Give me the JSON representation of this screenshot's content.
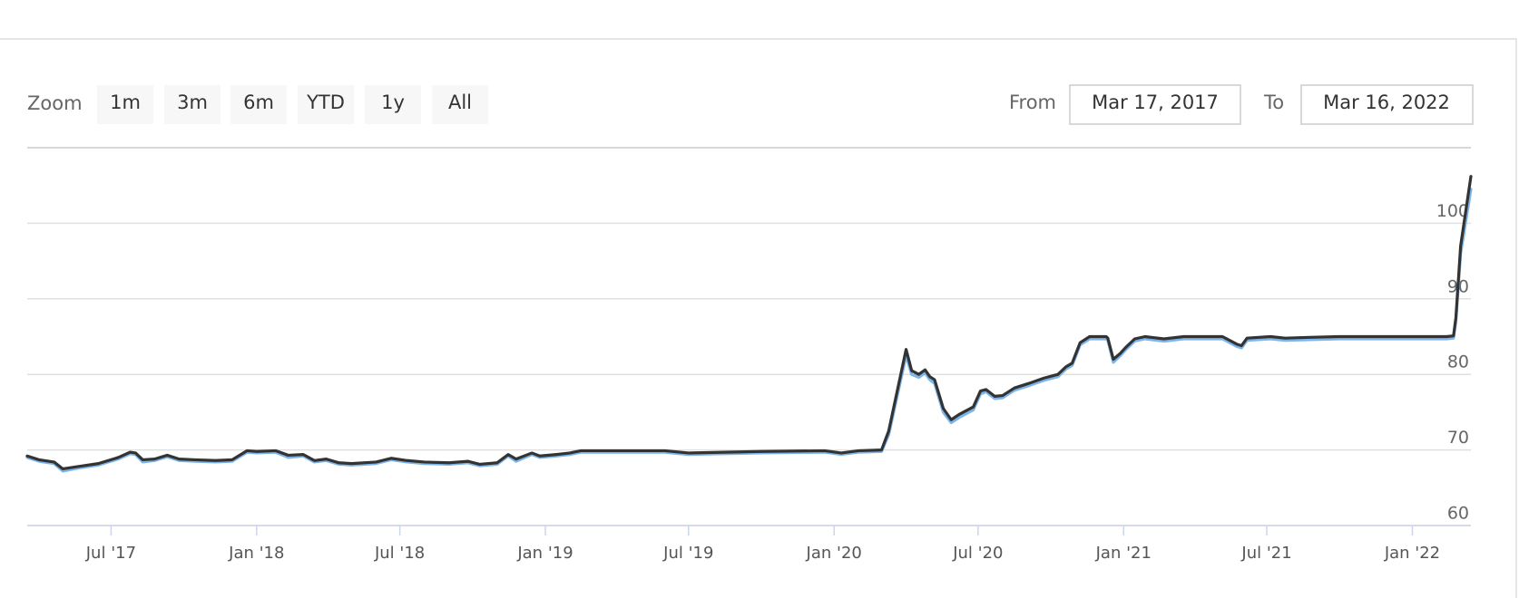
{
  "range_selector": {
    "zoom_label": "Zoom",
    "buttons": [
      "1m",
      "3m",
      "6m",
      "YTD",
      "1y",
      "All"
    ],
    "from_label": "From",
    "from": "Mar 17, 2017",
    "to_label": "To",
    "to": "Mar 16, 2022"
  },
  "chart_data": {
    "type": "line",
    "x": [
      "2017-03-17",
      "2017-04-01",
      "2017-04-20",
      "2017-05-01",
      "2017-05-20",
      "2017-06-15",
      "2017-07-10",
      "2017-07-25",
      "2017-08-01",
      "2017-08-10",
      "2017-08-25",
      "2017-09-10",
      "2017-09-25",
      "2017-10-15",
      "2017-11-10",
      "2017-12-01",
      "2017-12-20",
      "2018-01-01",
      "2018-01-25",
      "2018-02-10",
      "2018-03-01",
      "2018-03-15",
      "2018-03-30",
      "2018-04-15",
      "2018-05-01",
      "2018-06-01",
      "2018-06-20",
      "2018-07-10",
      "2018-08-01",
      "2018-09-01",
      "2018-09-25",
      "2018-10-10",
      "2018-11-01",
      "2018-11-15",
      "2018-11-25",
      "2018-12-15",
      "2018-12-25",
      "2019-01-15",
      "2019-02-01",
      "2019-02-15",
      "2019-06-01",
      "2019-07-01",
      "2019-10-01",
      "2019-12-20",
      "2020-01-10",
      "2020-02-01",
      "2020-03-01",
      "2020-03-10",
      "2020-04-01",
      "2020-04-08",
      "2020-04-17",
      "2020-04-25",
      "2020-05-01",
      "2020-05-07",
      "2020-05-18",
      "2020-05-28",
      "2020-06-07",
      "2020-06-25",
      "2020-07-04",
      "2020-07-11",
      "2020-07-22",
      "2020-08-01",
      "2020-08-16",
      "2020-09-03",
      "2020-09-22",
      "2020-10-10",
      "2020-10-20",
      "2020-10-28",
      "2020-11-07",
      "2020-11-19",
      "2020-12-10",
      "2020-12-12",
      "2020-12-19",
      "2020-12-28",
      "2021-01-03",
      "2021-01-15",
      "2021-01-28",
      "2021-02-21",
      "2021-03-18",
      "2021-05-06",
      "2021-05-24",
      "2021-05-30",
      "2021-06-06",
      "2021-07-06",
      "2021-07-24",
      "2021-08-24",
      "2021-09-30",
      "2022-02-13",
      "2022-02-22",
      "2022-02-25",
      "2022-03-03",
      "2022-03-16"
    ],
    "series": [
      {
        "color": "#7cb5ec",
        "values": [
          69.0,
          68.5,
          68.2,
          67.2,
          67.6,
          68.0,
          68.8,
          69.5,
          69.4,
          68.4,
          68.6,
          69.1,
          68.6,
          68.5,
          68.4,
          68.5,
          69.7,
          69.6,
          69.7,
          69.0,
          69.2,
          68.4,
          68.6,
          68.1,
          68.0,
          68.2,
          68.7,
          68.4,
          68.2,
          68.1,
          68.3,
          67.9,
          68.1,
          69.2,
          68.5,
          69.4,
          69.0,
          69.2,
          69.4,
          69.7,
          69.7,
          69.4,
          69.6,
          69.7,
          69.4,
          69.7,
          69.8,
          72.0,
          82.5,
          80.0,
          79.6,
          80.2,
          79.3,
          78.8,
          75.0,
          73.6,
          74.3,
          75.3,
          77.4,
          77.7,
          76.8,
          76.9,
          77.9,
          78.5,
          79.2,
          79.7,
          80.7,
          81.2,
          83.9,
          84.7,
          84.7,
          84.5,
          81.6,
          82.5,
          83.2,
          84.4,
          84.7,
          84.4,
          84.7,
          84.7,
          83.7,
          83.5,
          84.5,
          84.7,
          84.5,
          84.6,
          84.7,
          84.7,
          84.8,
          87.0,
          96.0,
          104.5
        ]
      },
      {
        "color": "#333333",
        "values": [
          69.2,
          68.7,
          68.4,
          67.5,
          67.8,
          68.2,
          69.0,
          69.7,
          69.6,
          68.7,
          68.8,
          69.3,
          68.8,
          68.7,
          68.6,
          68.7,
          69.9,
          69.8,
          69.9,
          69.3,
          69.4,
          68.6,
          68.8,
          68.3,
          68.2,
          68.4,
          68.9,
          68.6,
          68.4,
          68.3,
          68.5,
          68.1,
          68.3,
          69.4,
          68.8,
          69.6,
          69.2,
          69.4,
          69.6,
          69.9,
          69.9,
          69.6,
          69.8,
          69.9,
          69.6,
          69.9,
          70.0,
          72.5,
          83.3,
          80.5,
          80.0,
          80.6,
          79.7,
          79.3,
          75.5,
          74.0,
          74.7,
          75.7,
          77.8,
          78.0,
          77.1,
          77.2,
          78.2,
          78.8,
          79.5,
          80.0,
          81.0,
          81.5,
          84.2,
          85.0,
          85.0,
          84.8,
          82.0,
          82.8,
          83.5,
          84.7,
          85.0,
          84.7,
          85.0,
          85.0,
          84.0,
          83.8,
          84.8,
          85.0,
          84.8,
          84.9,
          85.0,
          85.0,
          85.1,
          87.5,
          97.0,
          106.2
        ]
      }
    ],
    "xlim": [
      "2017-03-17",
      "2022-03-16"
    ],
    "xticks": [
      {
        "value": "2017-07-01",
        "label": "Jul '17"
      },
      {
        "value": "2018-01-01",
        "label": "Jan '18"
      },
      {
        "value": "2018-07-01",
        "label": "Jul '18"
      },
      {
        "value": "2019-01-01",
        "label": "Jan '19"
      },
      {
        "value": "2019-07-01",
        "label": "Jul '19"
      },
      {
        "value": "2020-01-01",
        "label": "Jan '20"
      },
      {
        "value": "2020-07-01",
        "label": "Jul '20"
      },
      {
        "value": "2021-01-01",
        "label": "Jan '21"
      },
      {
        "value": "2021-07-01",
        "label": "Jul '21"
      },
      {
        "value": "2022-01-01",
        "label": "Jan '22"
      }
    ],
    "ylim": [
      60,
      110
    ],
    "yticks": [
      60,
      70,
      80,
      90,
      100
    ],
    "grid": true
  }
}
